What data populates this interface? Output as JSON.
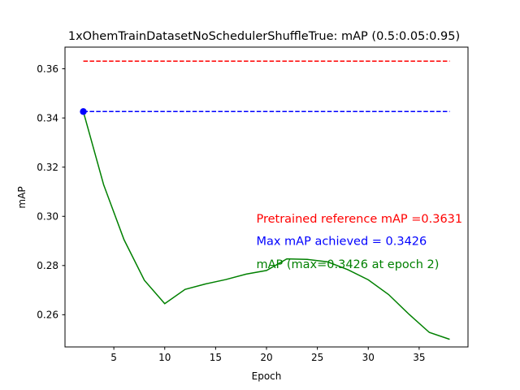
{
  "chart_data": {
    "type": "line",
    "title": "1xOhemTrainDatasetNoSchedulerShuffleTrue:  mAP (0.5:0.05:0.95)",
    "xlabel": "Epoch",
    "ylabel": "mAP",
    "xlim": [
      0.2,
      39.8
    ],
    "ylim": [
      0.2469,
      0.3688
    ],
    "xticks": [
      5,
      10,
      15,
      20,
      25,
      30,
      35
    ],
    "yticks": [
      0.26,
      0.28,
      0.3,
      0.32,
      0.34,
      0.36
    ],
    "grid": false,
    "series": [
      {
        "name": "mAP",
        "color": "#008000",
        "style": "solid",
        "x": [
          2,
          4,
          6,
          8,
          10,
          12,
          14,
          16,
          18,
          20,
          22,
          24,
          26,
          28,
          30,
          32,
          34,
          36,
          38
        ],
        "y": [
          0.3426,
          0.3128,
          0.2905,
          0.274,
          0.2645,
          0.2703,
          0.2725,
          0.2743,
          0.2765,
          0.278,
          0.2827,
          0.2825,
          0.2815,
          0.2783,
          0.2742,
          0.2682,
          0.2602,
          0.2528,
          0.25
        ]
      },
      {
        "name": "Pretrained reference mAP",
        "color": "#ff0000",
        "style": "dashed",
        "x": [
          2,
          38
        ],
        "y": [
          0.3631,
          0.3631
        ]
      },
      {
        "name": "Max mAP achieved",
        "color": "#0000ff",
        "style": "dashed",
        "x": [
          2,
          38
        ],
        "y": [
          0.3426,
          0.3426
        ]
      }
    ],
    "max_point": {
      "x": 2,
      "y": 0.3426,
      "color": "#0000ff"
    },
    "annotations": [
      {
        "text": "Pretrained reference mAP =0.3631",
        "color": "#ff0000",
        "x": 19,
        "y": 0.2975
      },
      {
        "text": "Max mAP achieved = 0.3426",
        "color": "#0000ff",
        "x": 19,
        "y": 0.2883
      },
      {
        "text": "mAP (max=0.3426 at epoch 2)",
        "color": "#008000",
        "x": 19,
        "y": 0.279
      }
    ]
  }
}
